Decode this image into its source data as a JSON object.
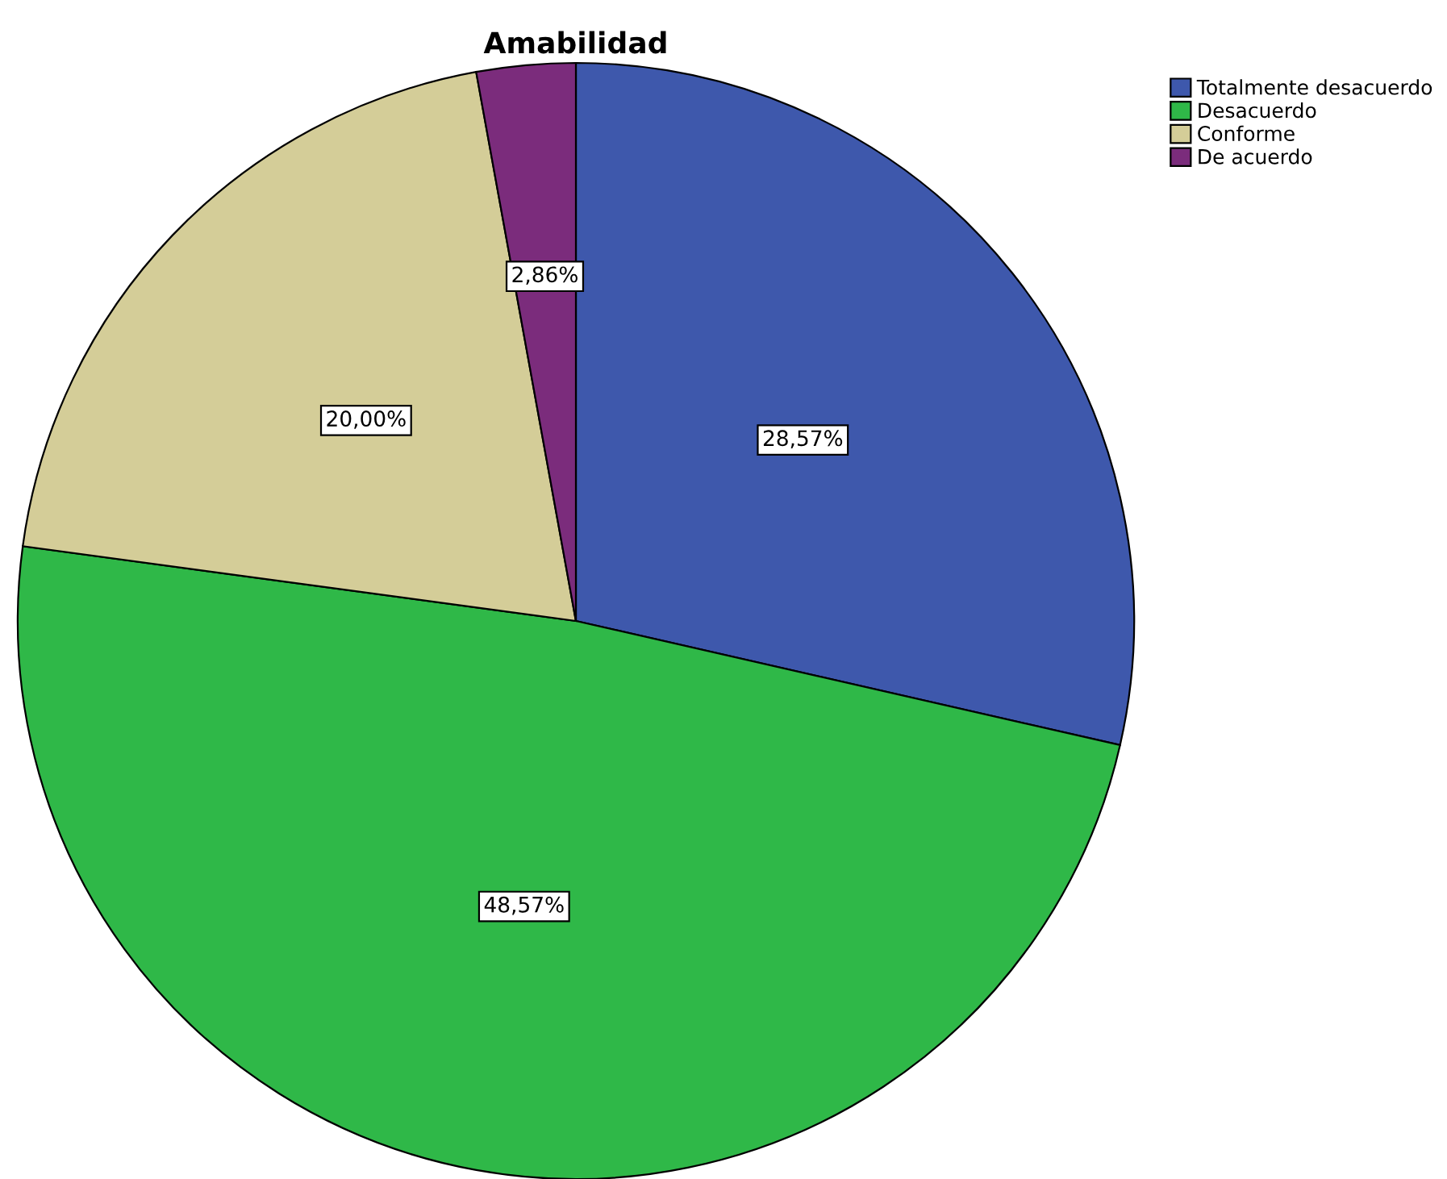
{
  "chart_data": {
    "type": "pie",
    "title": "Amabilidad",
    "categories": [
      "Totalmente desacuerdo",
      "Desacuerdo",
      "Conforme",
      "De acuerdo"
    ],
    "values": [
      28.57,
      48.57,
      20.0,
      2.86
    ],
    "value_labels": [
      "28,57%",
      "48,57%",
      "20,00%",
      "2,86%"
    ],
    "colors": [
      "#3e58ac",
      "#2fb848",
      "#d4cd98",
      "#7b2c7c"
    ],
    "legend": "top right"
  }
}
